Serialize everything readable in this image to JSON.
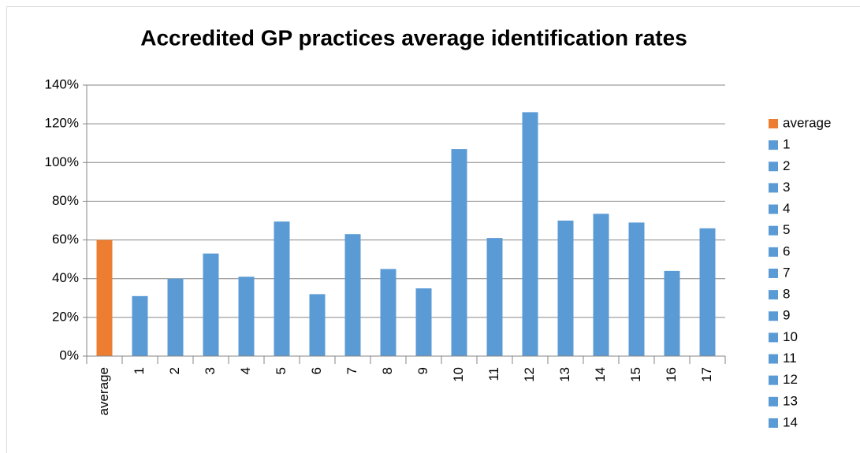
{
  "chart_data": {
    "type": "bar",
    "title": "Accredited GP practices average  identification rates",
    "categories": [
      "average",
      "1",
      "2",
      "3",
      "4",
      "5",
      "6",
      "7",
      "8",
      "9",
      "10",
      "11",
      "12",
      "13",
      "14",
      "15",
      "16",
      "17"
    ],
    "values": [
      60,
      31,
      40,
      53,
      41,
      69.5,
      32,
      63,
      45,
      35,
      107,
      61,
      126,
      70,
      73.5,
      69,
      44,
      66
    ],
    "colors": [
      "#ed7d31",
      "#5b9bd5",
      "#5b9bd5",
      "#5b9bd5",
      "#5b9bd5",
      "#5b9bd5",
      "#5b9bd5",
      "#5b9bd5",
      "#5b9bd5",
      "#5b9bd5",
      "#5b9bd5",
      "#5b9bd5",
      "#5b9bd5",
      "#5b9bd5",
      "#5b9bd5",
      "#5b9bd5",
      "#5b9bd5",
      "#5b9bd5"
    ],
    "ylim": [
      0,
      140
    ],
    "yticks": [
      {
        "value": 0,
        "label": "0%"
      },
      {
        "value": 20,
        "label": "20%"
      },
      {
        "value": 40,
        "label": "40%"
      },
      {
        "value": 60,
        "label": "60%"
      },
      {
        "value": 80,
        "label": "80%"
      },
      {
        "value": 100,
        "label": "100%"
      },
      {
        "value": 120,
        "label": "120%"
      },
      {
        "value": 140,
        "label": "140%"
      }
    ],
    "grid": true,
    "legend": "right"
  }
}
